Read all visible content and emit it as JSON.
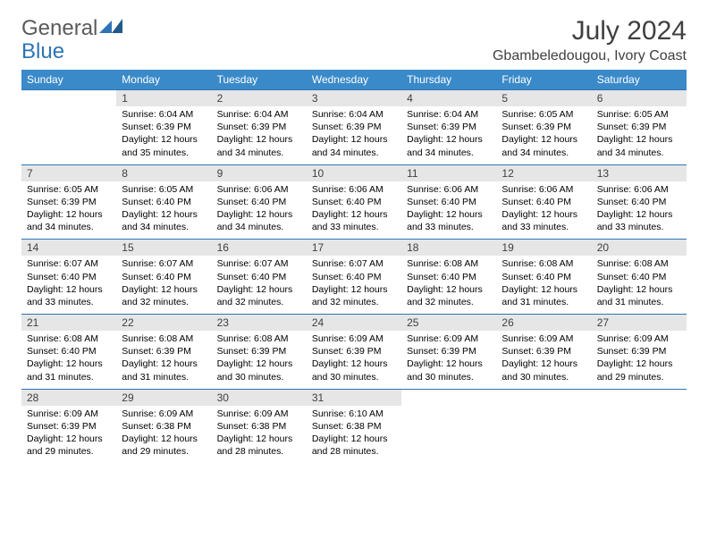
{
  "brand": {
    "part1": "General",
    "part2": "Blue"
  },
  "title": "July 2024",
  "location": "Gbambeledougou, Ivory Coast",
  "colors": {
    "header_bg": "#3a8ac9",
    "header_text": "#ffffff",
    "daynum_bg": "#e6e6e6",
    "row_border": "#2e74b5",
    "title_color": "#404040",
    "logo_gray": "#5a5a5a",
    "logo_blue": "#2e74b5"
  },
  "weekdays": [
    "Sunday",
    "Monday",
    "Tuesday",
    "Wednesday",
    "Thursday",
    "Friday",
    "Saturday"
  ],
  "weeks": [
    {
      "nums": [
        "",
        "1",
        "2",
        "3",
        "4",
        "5",
        "6"
      ],
      "cells": [
        null,
        {
          "sr": "Sunrise: 6:04 AM",
          "ss": "Sunset: 6:39 PM",
          "d1": "Daylight: 12 hours",
          "d2": "and 35 minutes."
        },
        {
          "sr": "Sunrise: 6:04 AM",
          "ss": "Sunset: 6:39 PM",
          "d1": "Daylight: 12 hours",
          "d2": "and 34 minutes."
        },
        {
          "sr": "Sunrise: 6:04 AM",
          "ss": "Sunset: 6:39 PM",
          "d1": "Daylight: 12 hours",
          "d2": "and 34 minutes."
        },
        {
          "sr": "Sunrise: 6:04 AM",
          "ss": "Sunset: 6:39 PM",
          "d1": "Daylight: 12 hours",
          "d2": "and 34 minutes."
        },
        {
          "sr": "Sunrise: 6:05 AM",
          "ss": "Sunset: 6:39 PM",
          "d1": "Daylight: 12 hours",
          "d2": "and 34 minutes."
        },
        {
          "sr": "Sunrise: 6:05 AM",
          "ss": "Sunset: 6:39 PM",
          "d1": "Daylight: 12 hours",
          "d2": "and 34 minutes."
        }
      ]
    },
    {
      "nums": [
        "7",
        "8",
        "9",
        "10",
        "11",
        "12",
        "13"
      ],
      "cells": [
        {
          "sr": "Sunrise: 6:05 AM",
          "ss": "Sunset: 6:39 PM",
          "d1": "Daylight: 12 hours",
          "d2": "and 34 minutes."
        },
        {
          "sr": "Sunrise: 6:05 AM",
          "ss": "Sunset: 6:40 PM",
          "d1": "Daylight: 12 hours",
          "d2": "and 34 minutes."
        },
        {
          "sr": "Sunrise: 6:06 AM",
          "ss": "Sunset: 6:40 PM",
          "d1": "Daylight: 12 hours",
          "d2": "and 34 minutes."
        },
        {
          "sr": "Sunrise: 6:06 AM",
          "ss": "Sunset: 6:40 PM",
          "d1": "Daylight: 12 hours",
          "d2": "and 33 minutes."
        },
        {
          "sr": "Sunrise: 6:06 AM",
          "ss": "Sunset: 6:40 PM",
          "d1": "Daylight: 12 hours",
          "d2": "and 33 minutes."
        },
        {
          "sr": "Sunrise: 6:06 AM",
          "ss": "Sunset: 6:40 PM",
          "d1": "Daylight: 12 hours",
          "d2": "and 33 minutes."
        },
        {
          "sr": "Sunrise: 6:06 AM",
          "ss": "Sunset: 6:40 PM",
          "d1": "Daylight: 12 hours",
          "d2": "and 33 minutes."
        }
      ]
    },
    {
      "nums": [
        "14",
        "15",
        "16",
        "17",
        "18",
        "19",
        "20"
      ],
      "cells": [
        {
          "sr": "Sunrise: 6:07 AM",
          "ss": "Sunset: 6:40 PM",
          "d1": "Daylight: 12 hours",
          "d2": "and 33 minutes."
        },
        {
          "sr": "Sunrise: 6:07 AM",
          "ss": "Sunset: 6:40 PM",
          "d1": "Daylight: 12 hours",
          "d2": "and 32 minutes."
        },
        {
          "sr": "Sunrise: 6:07 AM",
          "ss": "Sunset: 6:40 PM",
          "d1": "Daylight: 12 hours",
          "d2": "and 32 minutes."
        },
        {
          "sr": "Sunrise: 6:07 AM",
          "ss": "Sunset: 6:40 PM",
          "d1": "Daylight: 12 hours",
          "d2": "and 32 minutes."
        },
        {
          "sr": "Sunrise: 6:08 AM",
          "ss": "Sunset: 6:40 PM",
          "d1": "Daylight: 12 hours",
          "d2": "and 32 minutes."
        },
        {
          "sr": "Sunrise: 6:08 AM",
          "ss": "Sunset: 6:40 PM",
          "d1": "Daylight: 12 hours",
          "d2": "and 31 minutes."
        },
        {
          "sr": "Sunrise: 6:08 AM",
          "ss": "Sunset: 6:40 PM",
          "d1": "Daylight: 12 hours",
          "d2": "and 31 minutes."
        }
      ]
    },
    {
      "nums": [
        "21",
        "22",
        "23",
        "24",
        "25",
        "26",
        "27"
      ],
      "cells": [
        {
          "sr": "Sunrise: 6:08 AM",
          "ss": "Sunset: 6:40 PM",
          "d1": "Daylight: 12 hours",
          "d2": "and 31 minutes."
        },
        {
          "sr": "Sunrise: 6:08 AM",
          "ss": "Sunset: 6:39 PM",
          "d1": "Daylight: 12 hours",
          "d2": "and 31 minutes."
        },
        {
          "sr": "Sunrise: 6:08 AM",
          "ss": "Sunset: 6:39 PM",
          "d1": "Daylight: 12 hours",
          "d2": "and 30 minutes."
        },
        {
          "sr": "Sunrise: 6:09 AM",
          "ss": "Sunset: 6:39 PM",
          "d1": "Daylight: 12 hours",
          "d2": "and 30 minutes."
        },
        {
          "sr": "Sunrise: 6:09 AM",
          "ss": "Sunset: 6:39 PM",
          "d1": "Daylight: 12 hours",
          "d2": "and 30 minutes."
        },
        {
          "sr": "Sunrise: 6:09 AM",
          "ss": "Sunset: 6:39 PM",
          "d1": "Daylight: 12 hours",
          "d2": "and 30 minutes."
        },
        {
          "sr": "Sunrise: 6:09 AM",
          "ss": "Sunset: 6:39 PM",
          "d1": "Daylight: 12 hours",
          "d2": "and 29 minutes."
        }
      ]
    },
    {
      "nums": [
        "28",
        "29",
        "30",
        "31",
        "",
        "",
        ""
      ],
      "cells": [
        {
          "sr": "Sunrise: 6:09 AM",
          "ss": "Sunset: 6:39 PM",
          "d1": "Daylight: 12 hours",
          "d2": "and 29 minutes."
        },
        {
          "sr": "Sunrise: 6:09 AM",
          "ss": "Sunset: 6:38 PM",
          "d1": "Daylight: 12 hours",
          "d2": "and 29 minutes."
        },
        {
          "sr": "Sunrise: 6:09 AM",
          "ss": "Sunset: 6:38 PM",
          "d1": "Daylight: 12 hours",
          "d2": "and 28 minutes."
        },
        {
          "sr": "Sunrise: 6:10 AM",
          "ss": "Sunset: 6:38 PM",
          "d1": "Daylight: 12 hours",
          "d2": "and 28 minutes."
        },
        null,
        null,
        null
      ]
    }
  ]
}
